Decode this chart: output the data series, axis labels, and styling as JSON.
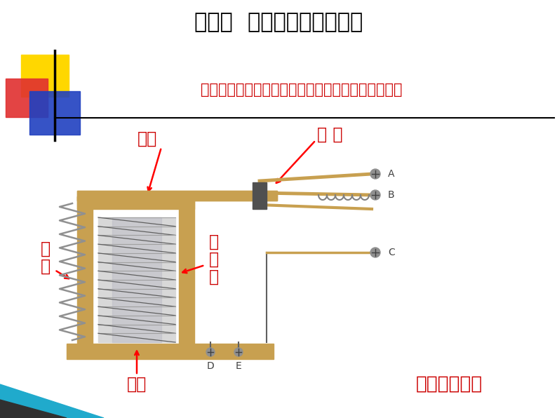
{
  "title": "第一节  继电器的作用和类型",
  "subtitle": "一、继电器构造：电磁铁，衡铁，弹簧，触电，支架",
  "label_yantie": "衡铁",
  "label_chuandian": "触 点",
  "label_tanhuang_1": "弹",
  "label_tanhuang_2": "簧",
  "label_diancitie_1": "电",
  "label_diancitie_2": "磁",
  "label_diancitie_3": "铁",
  "label_zhijia": "支架",
  "label_video": "工作原理视频",
  "bg_color": "#FFFFFF",
  "title_color": "#000000",
  "subtitle_color": "#CC0000",
  "label_color": "#CC0000",
  "video_color": "#CC0000",
  "frame_color": "#C8A050",
  "coil_bg": "#E0E0E0",
  "coil_line": "#808080",
  "pivot_color": "#505050",
  "contact_color": "#C8A050",
  "screw_color": "#808080",
  "spring_color": "#909090"
}
